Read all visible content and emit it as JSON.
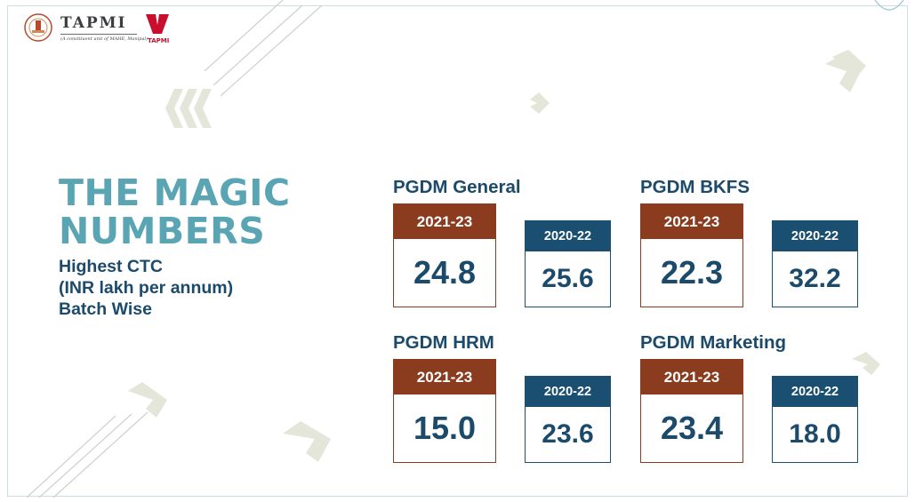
{
  "branding": {
    "name": "TAPMI",
    "tagline": "(A constituent unit of MAHE, Manipal)",
    "mark_label": "TAPMI",
    "colors": {
      "teal": "#5aa5b3",
      "navy": "#1b4a6b",
      "brown": "#8b3c1f",
      "blue": "#1b4f72",
      "red": "#c8102e"
    }
  },
  "headline": {
    "line1": "THE MAGIC",
    "line2": "NUMBERS"
  },
  "subtitle": {
    "line1": "Highest CTC",
    "line2": "(INR lakh per annum)",
    "line3": "Batch Wise"
  },
  "programs": [
    {
      "name": "PGDM General",
      "current": {
        "batch": "2021-23",
        "value": "24.8"
      },
      "previous": {
        "batch": "2020-22",
        "value": "25.6"
      }
    },
    {
      "name": "PGDM BKFS",
      "current": {
        "batch": "2021-23",
        "value": "22.3"
      },
      "previous": {
        "batch": "2020-22",
        "value": "32.2"
      }
    },
    {
      "name": "PGDM HRM",
      "current": {
        "batch": "2021-23",
        "value": "15.0"
      },
      "previous": {
        "batch": "2020-22",
        "value": "23.6"
      }
    },
    {
      "name": "PGDM Marketing",
      "current": {
        "batch": "2021-23",
        "value": "23.4"
      },
      "previous": {
        "batch": "2020-22",
        "value": "18.0"
      }
    }
  ]
}
